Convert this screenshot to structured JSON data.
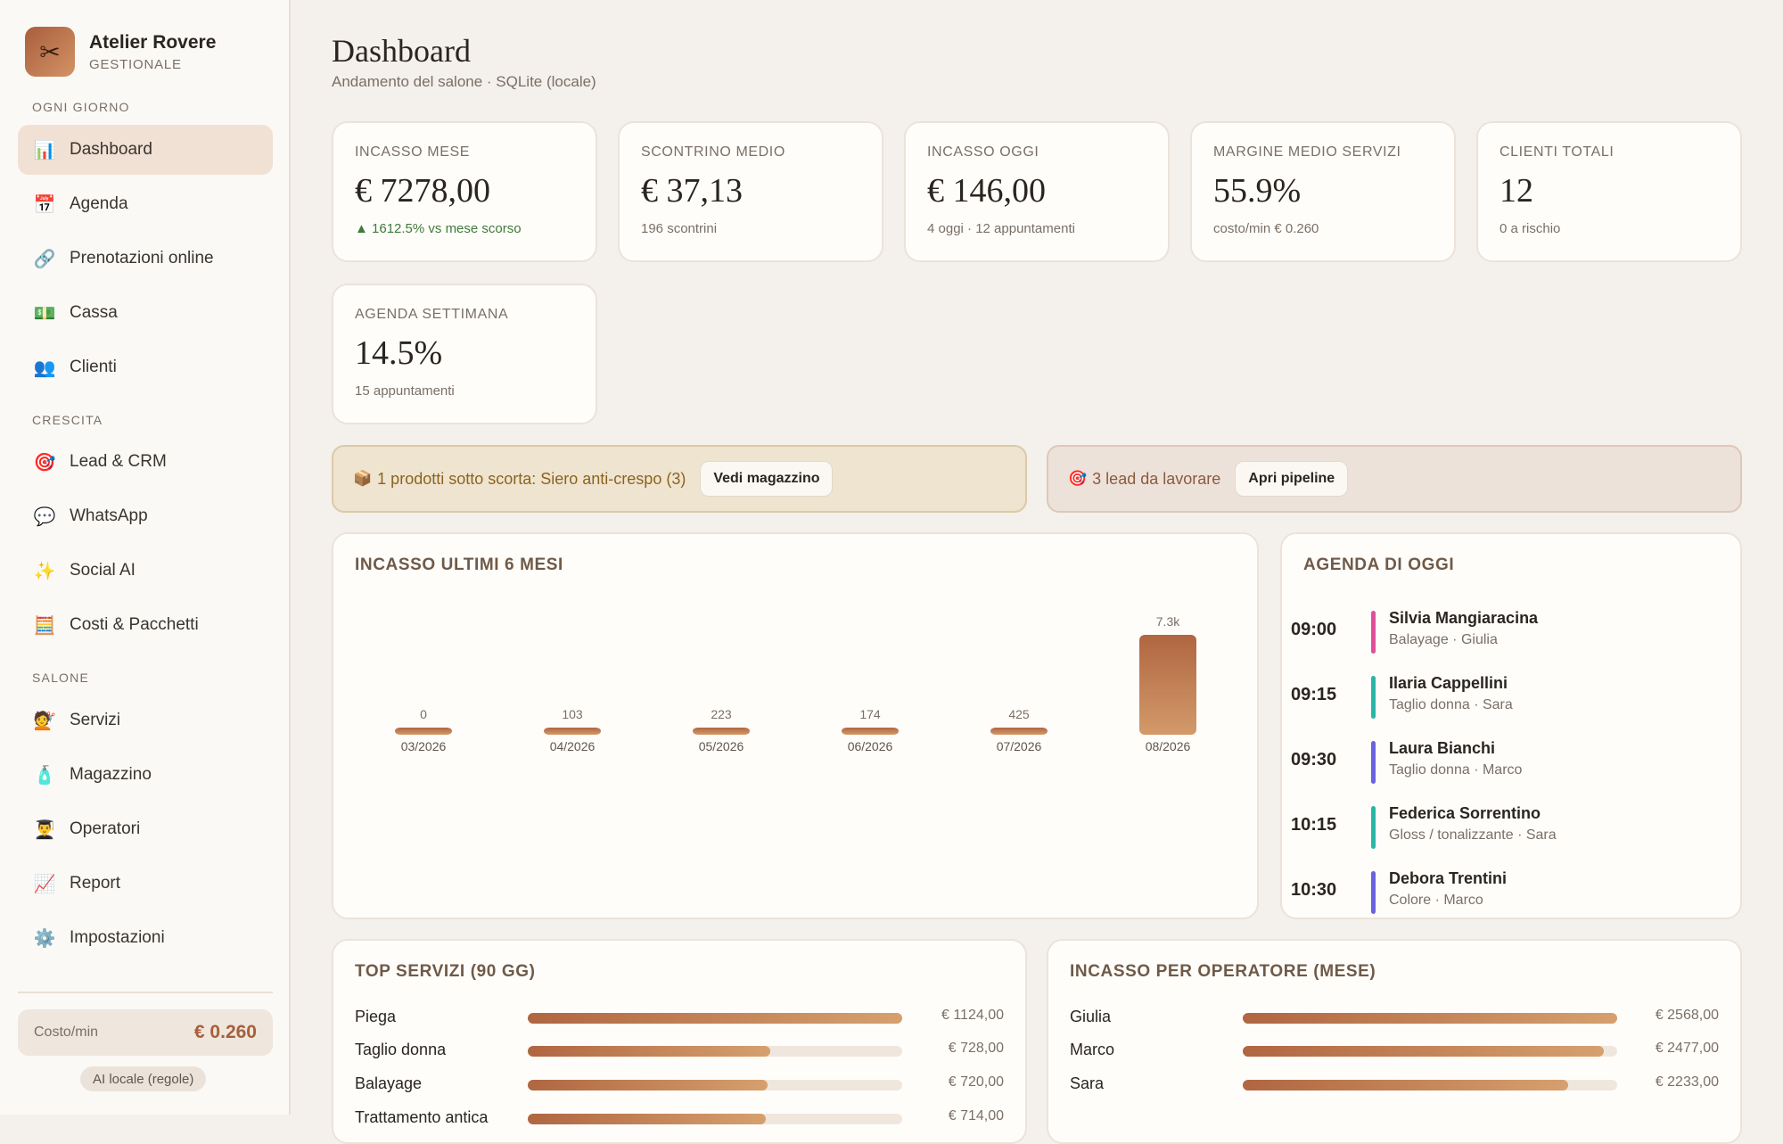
{
  "brand": {
    "name": "Atelier Rovere",
    "subtitle": "GESTIONALE",
    "logo_icon": "scissors-icon"
  },
  "sidebar": {
    "sections": [
      {
        "label": "OGNI GIORNO"
      },
      {
        "label": "CRESCITA"
      },
      {
        "label": "SALONE"
      }
    ],
    "items": [
      {
        "label": "Dashboard",
        "icon": "📊",
        "active": true
      },
      {
        "label": "Agenda",
        "icon": "📅"
      },
      {
        "label": "Prenotazioni online",
        "icon": "🔗"
      },
      {
        "label": "Cassa",
        "icon": "💵"
      },
      {
        "label": "Clienti",
        "icon": "👥"
      },
      {
        "label": "Lead & CRM",
        "icon": "🎯"
      },
      {
        "label": "WhatsApp",
        "icon": "💬"
      },
      {
        "label": "Social AI",
        "icon": "✨"
      },
      {
        "label": "Costi & Pacchetti",
        "icon": "🧮"
      },
      {
        "label": "Servizi",
        "icon": "💇"
      },
      {
        "label": "Magazzino",
        "icon": "🧴"
      },
      {
        "label": "Operatori",
        "icon": "👨‍🎓"
      },
      {
        "label": "Report",
        "icon": "📈"
      },
      {
        "label": "Impostazioni",
        "icon": "⚙️"
      }
    ],
    "cost": {
      "label": "Costo/min",
      "value": "€ 0.260"
    },
    "ai_mode": "AI locale (regole)"
  },
  "header": {
    "title": "Dashboard",
    "subtitle": "Andamento del salone · SQLite (locale)"
  },
  "kpis": [
    {
      "label": "INCASSO MESE",
      "value": "€ 7278,00",
      "note": "▲ 1612.5% vs mese scorso"
    },
    {
      "label": "SCONTRINO MEDIO",
      "value": "€ 37,13",
      "note": "196 scontrini"
    },
    {
      "label": "INCASSO OGGI",
      "value": "€ 146,00",
      "note": "4 oggi · 12 appuntamenti"
    },
    {
      "label": "MARGINE MEDIO SERVIZI",
      "value": "55.9%",
      "note": "costo/min € 0.260"
    },
    {
      "label": "CLIENTI TOTALI",
      "value": "12",
      "note": "0 a rischio"
    },
    {
      "label": "AGENDA SETTIMANA",
      "value": "14.5%",
      "note": "15 appuntamenti"
    }
  ],
  "alerts": {
    "stock": {
      "icon": "📦",
      "text": "1 prodotti sotto scorta: Siero anti-crespo (3)",
      "button": "Vedi magazzino"
    },
    "leads": {
      "icon": "🎯",
      "text": "3 lead da lavorare",
      "button": "Apri pipeline"
    }
  },
  "revenue_chart": {
    "title": "INCASSO ULTIMI 6 MESI"
  },
  "chart_data": {
    "type": "bar",
    "title": "INCASSO ULTIMI 6 MESI",
    "categories": [
      "03/2026",
      "04/2026",
      "05/2026",
      "06/2026",
      "07/2026",
      "08/2026"
    ],
    "values": [
      0,
      103,
      223,
      174,
      425,
      7278
    ],
    "value_labels": [
      "0",
      "103",
      "223",
      "174",
      "425",
      "7.3k"
    ],
    "colors": {
      "bar_top": "#b06641",
      "bar_bottom": "#d39a6a"
    }
  },
  "agenda_today": {
    "title": "AGENDA DI OGGI",
    "appointments": [
      {
        "time": "09:00",
        "name": "Silvia Mangiaracina",
        "detail": "Balayage · Giulia",
        "color": "#e0509a"
      },
      {
        "time": "09:15",
        "name": "Ilaria Cappellini",
        "detail": "Taglio donna · Sara",
        "color": "#2bb5a6"
      },
      {
        "time": "09:30",
        "name": "Laura Bianchi",
        "detail": "Taglio donna · Marco",
        "color": "#6a64e0"
      },
      {
        "time": "10:15",
        "name": "Federica Sorrentino",
        "detail": "Gloss / tonalizzante · Sara",
        "color": "#2bb5a6"
      },
      {
        "time": "10:30",
        "name": "Debora Trentini",
        "detail": "Colore · Marco",
        "color": "#6a64e0"
      }
    ]
  },
  "top_services": {
    "title": "TOP SERVIZI (90 GG)",
    "rows": [
      {
        "name": "Piega",
        "value": "€ 1124,00",
        "ratio": 1.0
      },
      {
        "name": "Taglio donna",
        "value": "€ 728,00",
        "ratio": 0.648
      },
      {
        "name": "Balayage",
        "value": "€ 720,00",
        "ratio": 0.641
      },
      {
        "name": "Trattamento antica",
        "value": "€ 714,00",
        "ratio": 0.635
      }
    ]
  },
  "operator_revenue": {
    "title": "INCASSO PER OPERATORE (MESE)",
    "rows": [
      {
        "name": "Giulia",
        "value": "€ 2568,00",
        "ratio": 1.0
      },
      {
        "name": "Marco",
        "value": "€ 2477,00",
        "ratio": 0.965
      },
      {
        "name": "Sara",
        "value": "€ 2233,00",
        "ratio": 0.87
      }
    ]
  }
}
